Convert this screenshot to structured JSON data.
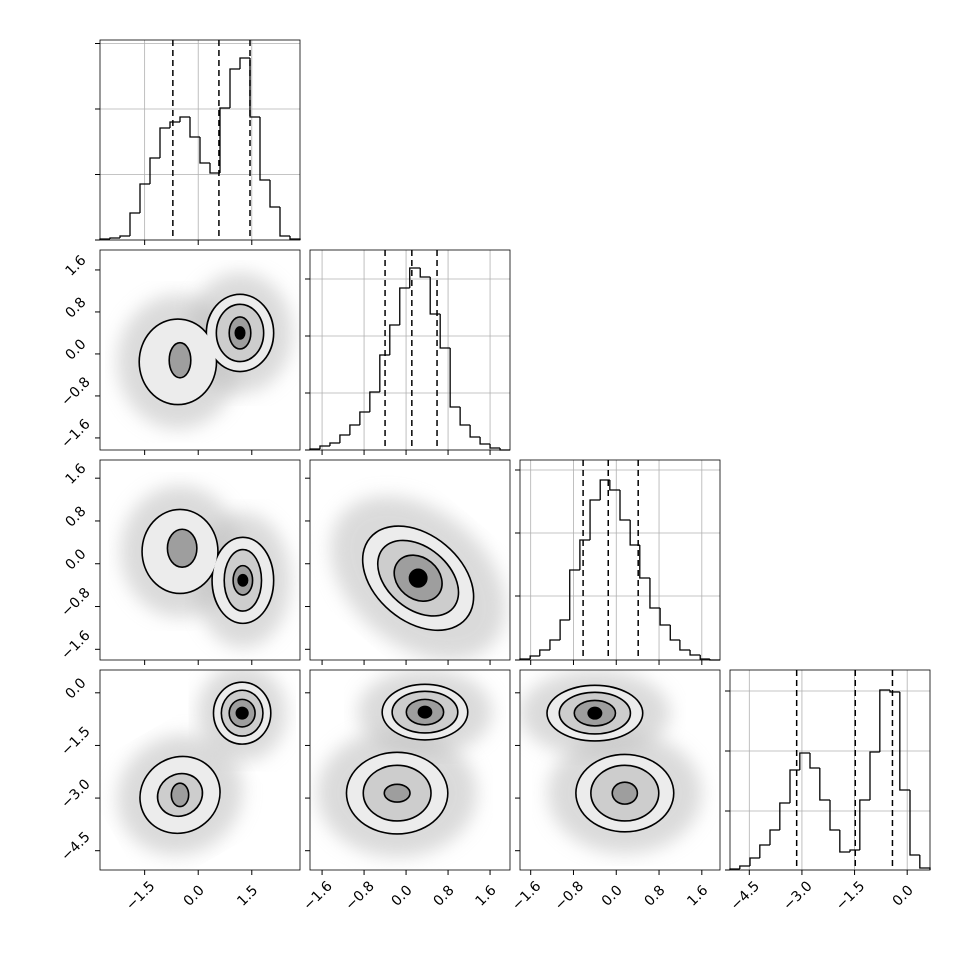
{
  "chart_data": {
    "type": "corner",
    "level_colors": [
      "#ececec",
      "#cdcdcd",
      "#9e9e9e",
      "#000000"
    ],
    "params": [
      {
        "lim": [
          -2.75,
          2.85
        ],
        "ticks": [
          {
            "value": -1.5,
            "label": "−1.5"
          },
          {
            "value": 0,
            "label": "0.0"
          },
          1.5
        ],
        "quantiles": [
          -0.71,
          0.58,
          1.45
        ],
        "bins": [
          -2.75,
          -2.47,
          -2.19,
          -1.91,
          -1.63,
          -1.35,
          -1.07,
          -0.79,
          -0.51,
          -0.23,
          0.05,
          0.33,
          0.61,
          0.89,
          1.17,
          1.45,
          1.73,
          2.01,
          2.29,
          2.57,
          2.85
        ],
        "counts": [
          1,
          2,
          4,
          27,
          56,
          82,
          112,
          118,
          123,
          103,
          77,
          67,
          132,
          171,
          182,
          123,
          60,
          33,
          4,
          1
        ],
        "hist_ylim": [
          0,
          200
        ],
        "hist_yticks": [
          0,
          65.5,
          131,
          196.5
        ]
      },
      {
        "lim": [
          -1.83,
          1.98
        ],
        "ticks": [
          {
            "value": -1.6,
            "label": "−1.6"
          },
          {
            "value": -0.8,
            "label": "−0.8"
          },
          {
            "value": 0,
            "label": "0.0"
          },
          0.8,
          1.6
        ],
        "quantiles": [
          -0.4,
          0.11,
          0.59
        ],
        "bins": [
          -1.83,
          -1.64,
          -1.45,
          -1.26,
          -1.07,
          -0.88,
          -0.69,
          -0.5,
          -0.31,
          -0.12,
          0.07,
          0.27,
          0.46,
          0.65,
          0.84,
          1.03,
          1.22,
          1.41,
          1.6,
          1.79,
          1.98
        ],
        "counts": [
          1,
          4,
          7,
          15,
          25,
          38,
          58,
          95,
          125,
          162,
          182,
          173,
          136,
          102,
          43,
          25,
          13,
          6,
          2,
          0
        ],
        "hist_ylim": [
          0,
          200
        ],
        "hist_yticks": [
          0,
          57,
          114,
          171
        ]
      },
      {
        "lim": [
          -1.8,
          1.94
        ],
        "ticks": [
          {
            "value": -1.6,
            "label": "−1.6"
          },
          {
            "value": -0.8,
            "label": "−0.8"
          },
          {
            "value": 0,
            "label": "0.0"
          },
          0.8,
          1.6
        ],
        "quantiles": [
          -0.62,
          -0.15,
          0.41
        ],
        "bins": [
          -1.8,
          -1.61,
          -1.43,
          -1.24,
          -1.05,
          -0.87,
          -0.68,
          -0.49,
          -0.3,
          -0.12,
          0.07,
          0.26,
          0.44,
          0.63,
          0.82,
          1.01,
          1.19,
          1.38,
          1.57,
          1.75,
          1.94
        ],
        "counts": [
          1,
          4,
          10,
          20,
          40,
          90,
          120,
          160,
          180,
          170,
          140,
          115,
          82,
          52,
          35,
          20,
          10,
          5,
          1,
          0
        ],
        "hist_ylim": [
          0,
          200
        ],
        "hist_yticks": [
          0,
          64,
          127,
          190
        ]
      },
      {
        "lim": [
          -5.05,
          0.65
        ],
        "ticks": [
          {
            "value": -4.5,
            "label": "−4.5"
          },
          {
            "value": -3,
            "label": "−3.0"
          },
          {
            "value": -1.5,
            "label": "−1.5"
          },
          {
            "value": 0,
            "label": "0.0"
          }
        ],
        "quantiles": [
          -3.15,
          -1.48,
          -0.42
        ],
        "bins": [
          -5.05,
          -4.77,
          -4.48,
          -4.2,
          -3.91,
          -3.63,
          -3.34,
          -3.06,
          -2.77,
          -2.49,
          -2.2,
          -1.92,
          -1.63,
          -1.35,
          -1.06,
          -0.78,
          -0.49,
          -0.21,
          0.08,
          0.36,
          0.65
        ],
        "counts": [
          1,
          4,
          12,
          25,
          40,
          67,
          100,
          117,
          102,
          70,
          40,
          18,
          20,
          70,
          118,
          180,
          178,
          80,
          15,
          2
        ],
        "hist_ylim": [
          0,
          200
        ],
        "hist_yticks": [
          0,
          59,
          119,
          179
        ]
      }
    ],
    "pairs": [
      {
        "x": 0,
        "y": 1,
        "contours": [
          {
            "level": 0,
            "cx": -0.57,
            "cy": -0.15,
            "rx": 1.06,
            "ry": 0.8
          },
          {
            "level": 0,
            "cx": 1.17,
            "cy": 0.4,
            "rx": 0.92,
            "ry": 0.72
          },
          {
            "level": 1,
            "cx": 1.17,
            "cy": 0.4,
            "rx": 0.64,
            "ry": 0.53
          },
          {
            "level": 2,
            "cx": -0.51,
            "cy": -0.12,
            "rx": 0.28,
            "ry": 0.32
          },
          {
            "level": 2,
            "cx": 1.17,
            "cy": 0.4,
            "rx": 0.28,
            "ry": 0.29
          },
          {
            "level": 3,
            "cx": 1.17,
            "cy": 0.4,
            "rx": 0.11,
            "ry": 0.1
          }
        ]
      },
      {
        "x": 0,
        "y": 2,
        "contours": [
          {
            "level": 0,
            "cx": -0.51,
            "cy": 0.23,
            "rx": 1.04,
            "ry": 0.77
          },
          {
            "level": 0,
            "cx": 1.25,
            "cy": -0.31,
            "rx": 0.84,
            "ry": 0.79
          },
          {
            "level": 1,
            "cx": 1.25,
            "cy": -0.31,
            "rx": 0.5,
            "ry": 0.56
          },
          {
            "level": 2,
            "cx": -0.45,
            "cy": 0.29,
            "rx": 0.39,
            "ry": 0.34
          },
          {
            "level": 2,
            "cx": 1.25,
            "cy": -0.31,
            "rx": 0.25,
            "ry": 0.26
          },
          {
            "level": 3,
            "cx": 1.25,
            "cy": -0.31,
            "rx": 0.11,
            "ry": 0.09
          }
        ]
      },
      {
        "x": 0,
        "y": 3,
        "contours": [
          {
            "level": 0,
            "cx": 1.23,
            "cy": -0.58,
            "rx": 0.78,
            "ry": 0.86
          },
          {
            "level": 0,
            "cx": -0.51,
            "cy": -2.91,
            "rx": 1.12,
            "ry": 1.05,
            "tilt": -30
          },
          {
            "level": 1,
            "cx": 1.23,
            "cy": -0.58,
            "rx": 0.56,
            "ry": 0.63
          },
          {
            "level": 1,
            "cx": -0.51,
            "cy": -2.91,
            "rx": 0.62,
            "ry": 0.57,
            "tilt": -30
          },
          {
            "level": 2,
            "cx": 1.23,
            "cy": -0.58,
            "rx": 0.34,
            "ry": 0.37
          },
          {
            "level": 2,
            "cx": -0.51,
            "cy": -2.91,
            "rx": 0.22,
            "ry": 0.31
          },
          {
            "level": 3,
            "cx": 1.23,
            "cy": -0.58,
            "rx": 0.14,
            "ry": 0.14
          }
        ]
      },
      {
        "x": 1,
        "y": 2,
        "contours": [
          {
            "level": 0,
            "cx": 0.23,
            "cy": -0.27,
            "rx": 1.18,
            "ry": 0.79,
            "tilt": 40
          },
          {
            "level": 1,
            "cx": 0.23,
            "cy": -0.27,
            "rx": 0.86,
            "ry": 0.56,
            "tilt": 40
          },
          {
            "level": 2,
            "cx": 0.23,
            "cy": -0.27,
            "rx": 0.48,
            "ry": 0.37,
            "tilt": 40
          },
          {
            "level": 3,
            "cx": 0.23,
            "cy": -0.27,
            "rx": 0.15,
            "ry": 0.15
          }
        ]
      },
      {
        "x": 1,
        "y": 3,
        "contours": [
          {
            "level": 0,
            "cx": 0.36,
            "cy": -0.55,
            "rx": 0.8,
            "ry": 0.77
          },
          {
            "level": 0,
            "cx": -0.17,
            "cy": -2.86,
            "rx": 0.95,
            "ry": 1.14
          },
          {
            "level": 1,
            "cx": 0.36,
            "cy": -0.55,
            "rx": 0.61,
            "ry": 0.57
          },
          {
            "level": 1,
            "cx": -0.17,
            "cy": -2.86,
            "rx": 0.63,
            "ry": 0.77
          },
          {
            "level": 2,
            "cx": 0.36,
            "cy": -0.55,
            "rx": 0.34,
            "ry": 0.34
          },
          {
            "level": 2,
            "cx": -0.17,
            "cy": -2.86,
            "rx": 0.23,
            "ry": 0.23
          },
          {
            "level": 3,
            "cx": 0.36,
            "cy": -0.55,
            "rx": 0.11,
            "ry": 0.14
          }
        ]
      },
      {
        "x": 2,
        "y": 3,
        "contours": [
          {
            "level": 0,
            "cx": -0.4,
            "cy": -0.58,
            "rx": 0.88,
            "ry": 0.77
          },
          {
            "level": 0,
            "cx": 0.16,
            "cy": -2.86,
            "rx": 0.9,
            "ry": 1.08
          },
          {
            "level": 1,
            "cx": -0.4,
            "cy": -0.58,
            "rx": 0.65,
            "ry": 0.57
          },
          {
            "level": 1,
            "cx": 0.16,
            "cy": -2.86,
            "rx": 0.62,
            "ry": 0.77
          },
          {
            "level": 2,
            "cx": -0.4,
            "cy": -0.58,
            "rx": 0.37,
            "ry": 0.34
          },
          {
            "level": 2,
            "cx": 0.16,
            "cy": -2.86,
            "rx": 0.22,
            "ry": 0.29
          },
          {
            "level": 3,
            "cx": -0.4,
            "cy": -0.58,
            "rx": 0.11,
            "ry": 0.14
          }
        ]
      }
    ]
  }
}
